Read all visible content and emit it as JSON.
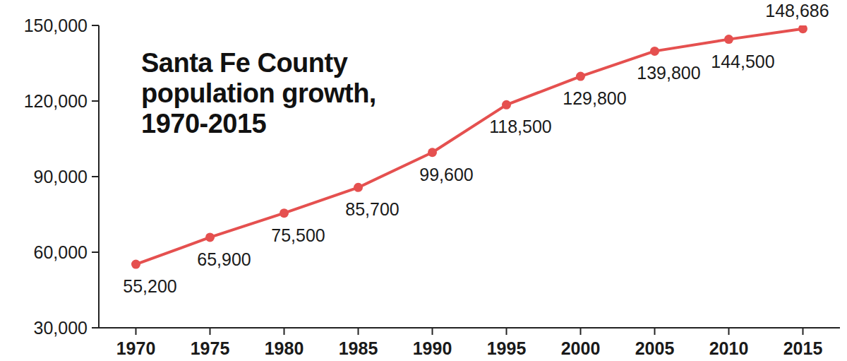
{
  "chart_data": {
    "type": "line",
    "title": "Santa Fe County population growth, 1970-2015",
    "x": [
      1970,
      1975,
      1980,
      1985,
      1990,
      1995,
      2000,
      2005,
      2010,
      2015
    ],
    "values": [
      55200,
      65900,
      75500,
      85700,
      99600,
      118500,
      129800,
      139800,
      144500,
      148686
    ],
    "value_labels": [
      "55,200",
      "65,900",
      "75,500",
      "85,700",
      "99,600",
      "118,500",
      "129,800",
      "139,800",
      "144,500",
      "148,686"
    ],
    "data_labels": true,
    "color": "#e5504f",
    "marker": "circle",
    "line_style": "solid",
    "xlim": [
      1967.5,
      2017.5
    ],
    "xticks": [
      1970,
      1975,
      1980,
      1985,
      1990,
      1995,
      2000,
      2005,
      2010,
      2015
    ],
    "ylim": [
      30000,
      150000
    ],
    "yticks": [
      {
        "value": 30000,
        "label": "30,000"
      },
      {
        "value": 60000,
        "label": "60,000"
      },
      {
        "value": 90000,
        "label": "90,000"
      },
      {
        "value": 120000,
        "label": "120,000"
      },
      {
        "value": 150000,
        "label": "150,000"
      }
    ],
    "grid": false
  }
}
